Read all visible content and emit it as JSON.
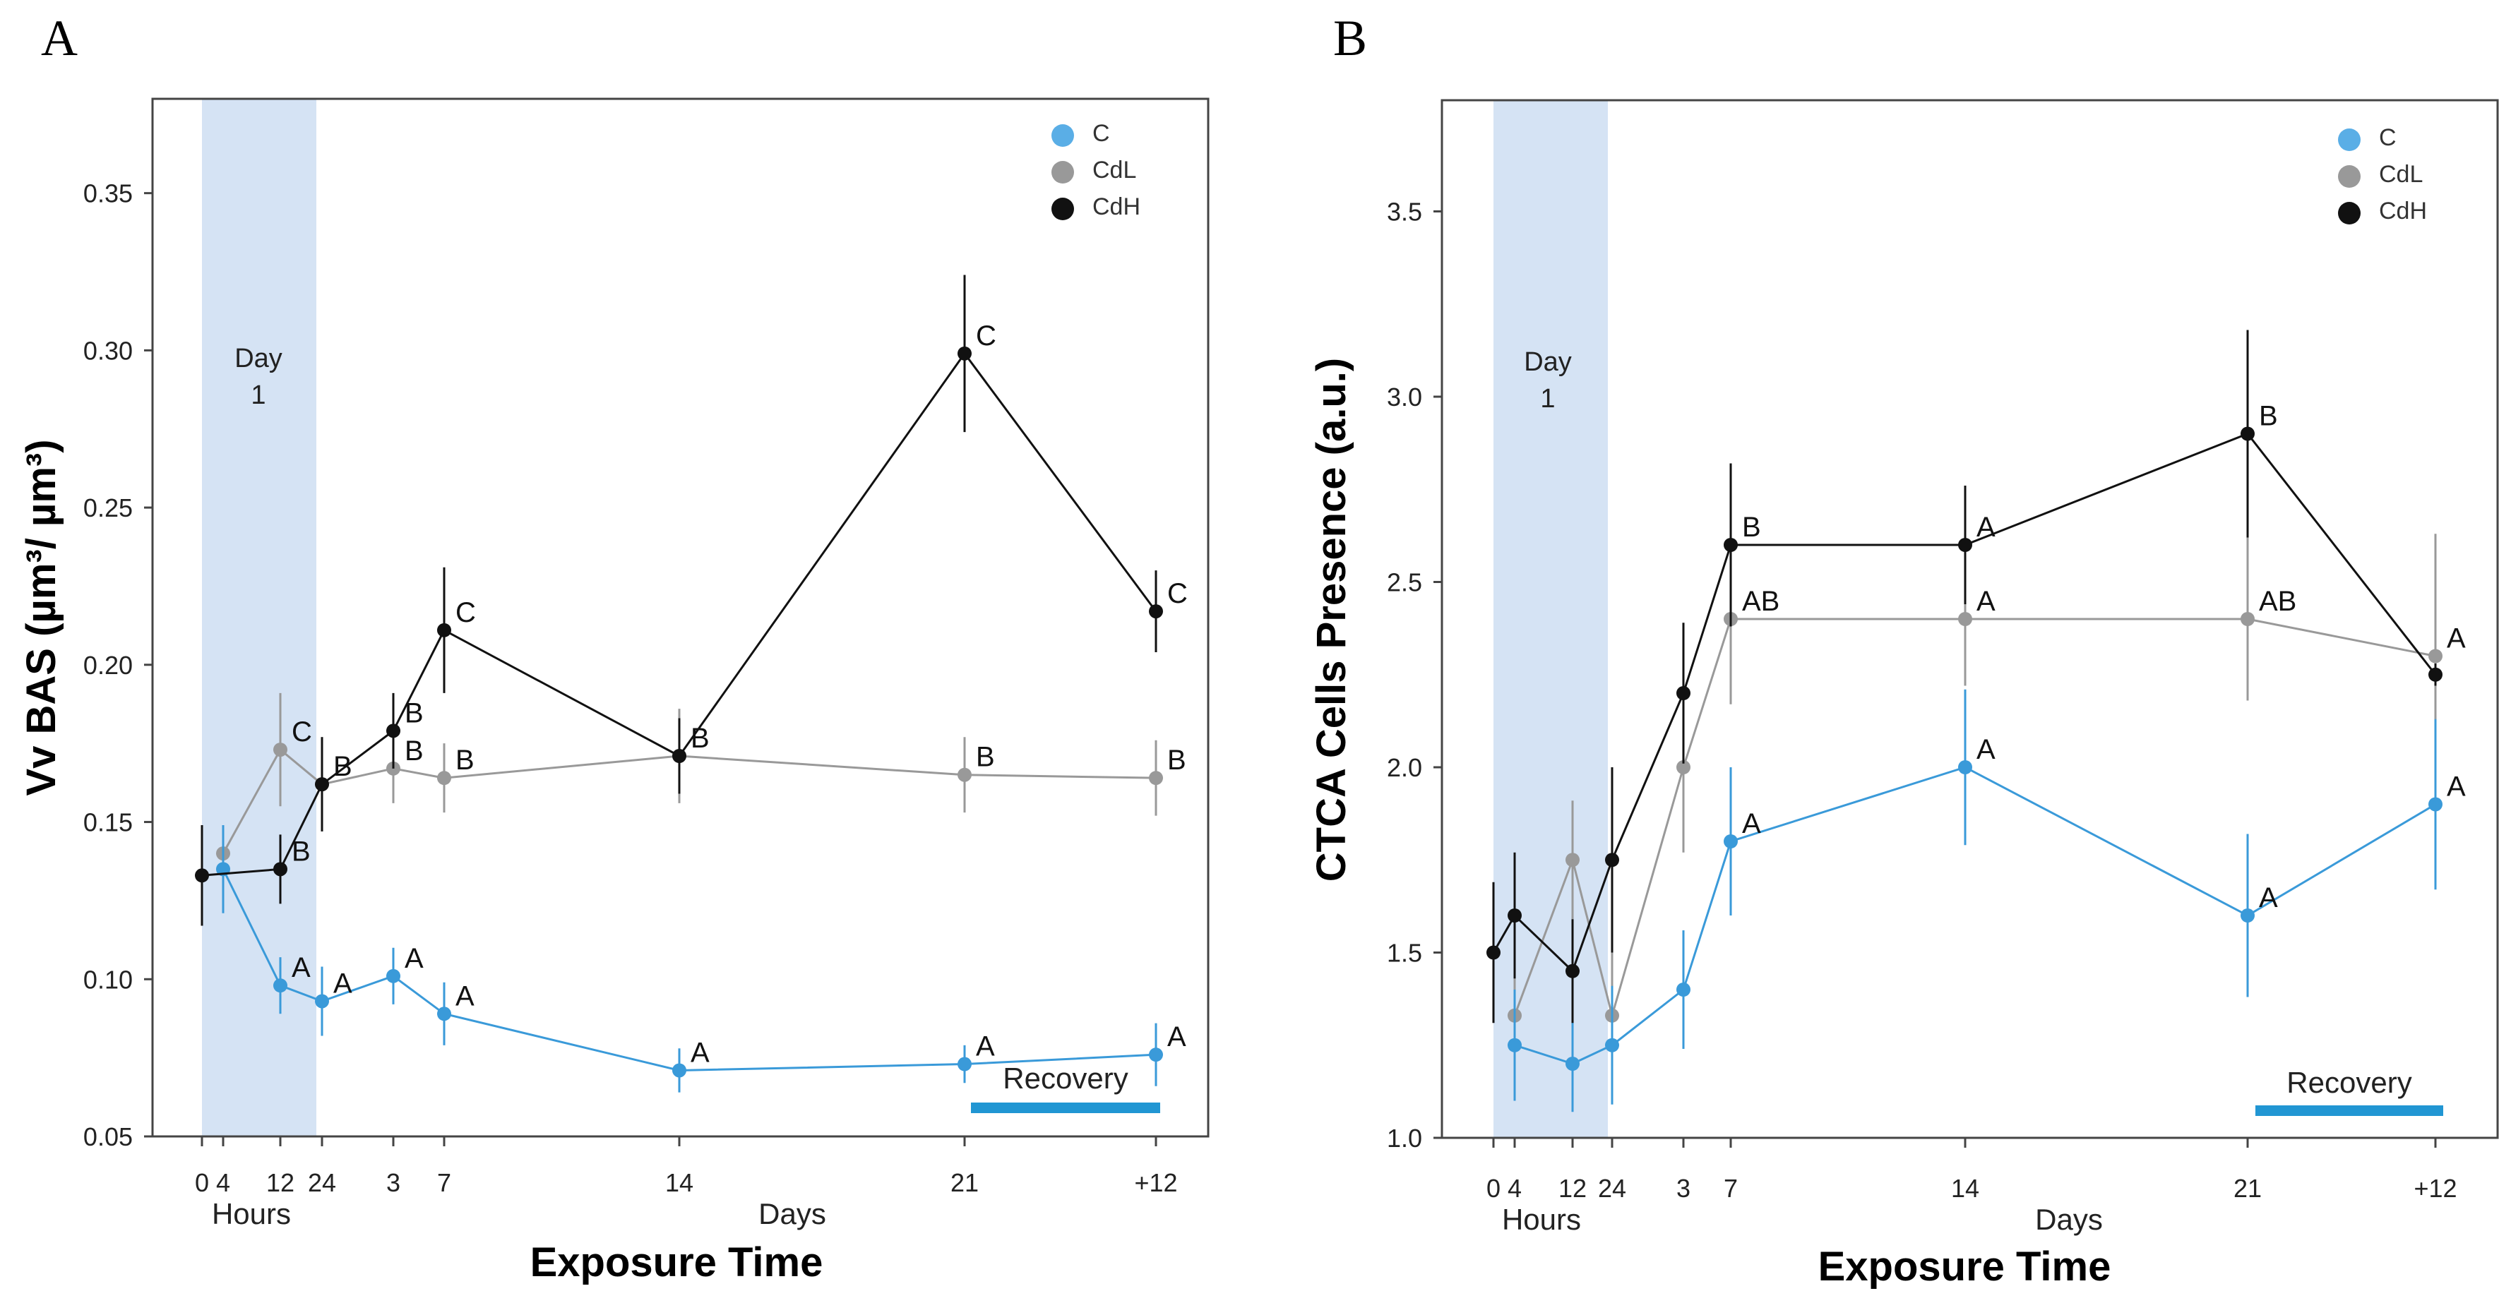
{
  "chart_data": [
    {
      "panel": "A",
      "type": "line",
      "ylabel": "Vv BAS (µm³/ µm³)",
      "xlabel": "Exposure Time",
      "ylim": [
        0.05,
        0.38
      ],
      "y_ticks": [
        "0.05",
        "0.10",
        "0.15",
        "0.20",
        "0.25",
        "0.30",
        "0.35"
      ],
      "x_ticks": [
        "0",
        "4",
        "12",
        "24",
        "3",
        "7",
        "14",
        "21",
        "+12"
      ],
      "x_group_labels": [
        "Hours",
        "Days"
      ],
      "shaded_label": [
        "Day",
        "1"
      ],
      "recovery_label": "Recovery",
      "legend": [
        "C",
        "CdL",
        "CdH"
      ],
      "series": [
        {
          "name": "C",
          "color": "#3a9ad9",
          "points": [
            {
              "x": "4",
              "y": 0.135,
              "err": 0.014,
              "letter": ""
            },
            {
              "x": "12",
              "y": 0.098,
              "err": 0.009,
              "letter": "A"
            },
            {
              "x": "24",
              "y": 0.093,
              "err": 0.011,
              "letter": "A"
            },
            {
              "x": "3",
              "y": 0.101,
              "err": 0.009,
              "letter": "A"
            },
            {
              "x": "7",
              "y": 0.089,
              "err": 0.01,
              "letter": "A"
            },
            {
              "x": "14",
              "y": 0.071,
              "err": 0.007,
              "letter": "A"
            },
            {
              "x": "21",
              "y": 0.073,
              "err": 0.006,
              "letter": "A"
            },
            {
              "x": "+12",
              "y": 0.076,
              "err": 0.01,
              "letter": "A"
            }
          ]
        },
        {
          "name": "CdL",
          "color": "#999999",
          "points": [
            {
              "x": "4",
              "y": 0.14,
              "err": 0.008,
              "letter": ""
            },
            {
              "x": "12",
              "y": 0.173,
              "err": 0.018,
              "letter": "C"
            },
            {
              "x": "24",
              "y": 0.162,
              "err": 0.015,
              "letter": "B"
            },
            {
              "x": "3",
              "y": 0.167,
              "err": 0.011,
              "letter": "B"
            },
            {
              "x": "7",
              "y": 0.164,
              "err": 0.011,
              "letter": "B"
            },
            {
              "x": "14",
              "y": 0.171,
              "err": 0.015,
              "letter": "B"
            },
            {
              "x": "21",
              "y": 0.165,
              "err": 0.012,
              "letter": "B"
            },
            {
              "x": "+12",
              "y": 0.164,
              "err": 0.012,
              "letter": "B"
            }
          ]
        },
        {
          "name": "CdH",
          "color": "#111111",
          "points": [
            {
              "x": "0",
              "y": 0.133,
              "err": 0.016,
              "letter": ""
            },
            {
              "x": "12",
              "y": 0.135,
              "err": 0.011,
              "letter": "B"
            },
            {
              "x": "24",
              "y": 0.162,
              "err": 0.015,
              "letter": ""
            },
            {
              "x": "3",
              "y": 0.179,
              "err": 0.012,
              "letter": "B"
            },
            {
              "x": "7",
              "y": 0.211,
              "err": 0.02,
              "letter": "C"
            },
            {
              "x": "14",
              "y": 0.171,
              "err": 0.012,
              "letter": ""
            },
            {
              "x": "21",
              "y": 0.299,
              "err": 0.025,
              "letter": "C"
            },
            {
              "x": "+12",
              "y": 0.217,
              "err": 0.013,
              "letter": "C"
            }
          ]
        }
      ]
    },
    {
      "panel": "B",
      "type": "line",
      "ylabel": "CTCA Cells Presence (a.u.)",
      "xlabel": "Exposure Time",
      "ylim": [
        1.0,
        3.8
      ],
      "y_ticks": [
        "1.0",
        "1.5",
        "2.0",
        "2.5",
        "3.0",
        "3.5"
      ],
      "x_ticks": [
        "0",
        "4",
        "12",
        "24",
        "3",
        "7",
        "14",
        "21",
        "+12"
      ],
      "x_group_labels": [
        "Hours",
        "Days"
      ],
      "shaded_label": [
        "Day",
        "1"
      ],
      "recovery_label": "Recovery",
      "legend": [
        "C",
        "CdL",
        "CdH"
      ],
      "series": [
        {
          "name": "C",
          "color": "#3a9ad9",
          "points": [
            {
              "x": "4",
              "y": 1.25,
              "err": 0.15,
              "letter": ""
            },
            {
              "x": "12",
              "y": 1.2,
              "err": 0.13,
              "letter": ""
            },
            {
              "x": "24",
              "y": 1.25,
              "err": 0.16,
              "letter": ""
            },
            {
              "x": "3",
              "y": 1.4,
              "err": 0.16,
              "letter": ""
            },
            {
              "x": "7",
              "y": 1.8,
              "err": 0.2,
              "letter": "A"
            },
            {
              "x": "14",
              "y": 2.0,
              "err": 0.21,
              "letter": "A"
            },
            {
              "x": "21",
              "y": 1.6,
              "err": 0.22,
              "letter": "A"
            },
            {
              "x": "+12",
              "y": 1.9,
              "err": 0.23,
              "letter": "A"
            }
          ]
        },
        {
          "name": "CdL",
          "color": "#999999",
          "points": [
            {
              "x": "4",
              "y": 1.33,
              "err": 0.17,
              "letter": ""
            },
            {
              "x": "12",
              "y": 1.75,
              "err": 0.16,
              "letter": ""
            },
            {
              "x": "24",
              "y": 1.33,
              "err": 0.17,
              "letter": ""
            },
            {
              "x": "3",
              "y": 2.0,
              "err": 0.23,
              "letter": ""
            },
            {
              "x": "7",
              "y": 2.4,
              "err": 0.23,
              "letter": "AB"
            },
            {
              "x": "14",
              "y": 2.4,
              "err": 0.18,
              "letter": "A"
            },
            {
              "x": "21",
              "y": 2.4,
              "err": 0.22,
              "letter": "AB"
            },
            {
              "x": "+12",
              "y": 2.3,
              "err": 0.33,
              "letter": "A"
            }
          ]
        },
        {
          "name": "CdH",
          "color": "#111111",
          "points": [
            {
              "x": "0",
              "y": 1.5,
              "err": 0.19,
              "letter": ""
            },
            {
              "x": "4",
              "y": 1.6,
              "err": 0.17,
              "letter": ""
            },
            {
              "x": "12",
              "y": 1.45,
              "err": 0.14,
              "letter": ""
            },
            {
              "x": "24",
              "y": 1.75,
              "err": 0.25,
              "letter": ""
            },
            {
              "x": "3",
              "y": 2.2,
              "err": 0.19,
              "letter": ""
            },
            {
              "x": "7",
              "y": 2.6,
              "err": 0.22,
              "letter": "B"
            },
            {
              "x": "14",
              "y": 2.6,
              "err": 0.16,
              "letter": "A"
            },
            {
              "x": "21",
              "y": 2.9,
              "err": 0.28,
              "letter": "B"
            },
            {
              "x": "+12",
              "y": 2.25,
              "err": 0.03,
              "letter": ""
            }
          ]
        }
      ]
    }
  ]
}
